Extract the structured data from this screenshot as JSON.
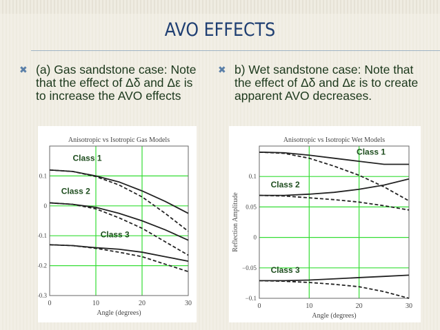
{
  "title": "AVO EFFECTS",
  "bullets": [
    {
      "icon": "x-bullet-icon",
      "mark": "✖",
      "text": "(a) Gas sandstone case: Note that the effect of Δδ and Δε is to increase the AVO effects"
    },
    {
      "icon": "x-bullet-icon",
      "mark": "✖",
      "text": "b) Wet sandstone case: Note that the effect of Δδ and Δε is to create apparent AVO decreases."
    }
  ],
  "colors": {
    "title": "#1f3f72",
    "text": "#1c381c",
    "grid": "#33dd33",
    "class_label": "#1e4d1e"
  },
  "chart_data": [
    {
      "type": "line",
      "title": "Anisotropic vs Isotropic Gas Models",
      "xlabel": "Angle (degrees)",
      "ylabel": "",
      "xlim": [
        0,
        30
      ],
      "ylim": [
        -0.3,
        0.2
      ],
      "xticks": [
        "0",
        "10",
        "20",
        "30"
      ],
      "yticks": [
        "0.1",
        "0",
        "-0.1",
        "-0.2",
        "-0.3"
      ],
      "ytick_values": [
        0.1,
        0,
        -0.1,
        -0.2,
        -0.3
      ],
      "grid": true,
      "x": [
        0,
        5,
        10,
        15,
        20,
        25,
        30
      ],
      "series": [
        {
          "label": "Class 1",
          "style": "solid",
          "values": [
            0.12,
            0.115,
            0.1,
            0.08,
            0.05,
            0.015,
            -0.025
          ]
        },
        {
          "label": "Class 1",
          "style": "dashed",
          "values": [
            0.12,
            0.115,
            0.098,
            0.07,
            0.03,
            -0.025,
            -0.085
          ]
        },
        {
          "label": "Class 2",
          "style": "solid",
          "values": [
            0.01,
            0.005,
            -0.005,
            -0.025,
            -0.05,
            -0.08,
            -0.115
          ]
        },
        {
          "label": "Class 2",
          "style": "dashed",
          "values": [
            0.01,
            0.005,
            -0.01,
            -0.04,
            -0.075,
            -0.12,
            -0.165
          ]
        },
        {
          "label": "Class 3",
          "style": "solid",
          "values": [
            -0.13,
            -0.133,
            -0.14,
            -0.145,
            -0.155,
            -0.17,
            -0.185
          ]
        },
        {
          "label": "Class 3",
          "style": "dashed",
          "values": [
            -0.13,
            -0.133,
            -0.142,
            -0.155,
            -0.17,
            -0.195,
            -0.22
          ]
        }
      ],
      "annotations": [
        {
          "text": "Class 1",
          "x": 5,
          "y": 0.15
        },
        {
          "text": "Class 2",
          "x": 2.5,
          "y": 0.04
        },
        {
          "text": "Class 3",
          "x": 11,
          "y": -0.105
        }
      ]
    },
    {
      "type": "line",
      "title": "Anisotropic vs Isotropic Wet Models",
      "xlabel": "Angle (degrees)",
      "ylabel": "Reflection Amplitude",
      "xlim": [
        0,
        30
      ],
      "ylim": [
        -0.1,
        0.15
      ],
      "xticks": [
        "0",
        "10",
        "20",
        "30"
      ],
      "yticks": [
        "0.1",
        "0.05",
        "0",
        "−0.05",
        "−0.1"
      ],
      "ytick_values": [
        0.1,
        0.05,
        0,
        -0.05,
        -0.1
      ],
      "grid": true,
      "x": [
        0,
        5,
        10,
        15,
        20,
        25,
        30
      ],
      "series": [
        {
          "label": "Class 1",
          "style": "solid",
          "values": [
            0.14,
            0.139,
            0.135,
            0.13,
            0.125,
            0.12,
            0.12
          ]
        },
        {
          "label": "Class 1",
          "style": "dashed",
          "values": [
            0.14,
            0.138,
            0.13,
            0.117,
            0.102,
            0.083,
            0.06
          ]
        },
        {
          "label": "Class 2",
          "style": "solid",
          "values": [
            0.069,
            0.069,
            0.071,
            0.074,
            0.079,
            0.086,
            0.096
          ]
        },
        {
          "label": "Class 2",
          "style": "dashed",
          "values": [
            0.069,
            0.068,
            0.065,
            0.062,
            0.058,
            0.052,
            0.045
          ]
        },
        {
          "label": "Class 3",
          "style": "solid",
          "values": [
            -0.071,
            -0.071,
            -0.07,
            -0.068,
            -0.066,
            -0.064,
            -0.062
          ]
        },
        {
          "label": "Class 3",
          "style": "dashed",
          "values": [
            -0.071,
            -0.072,
            -0.074,
            -0.077,
            -0.081,
            -0.089,
            -0.1
          ]
        }
      ],
      "annotations": [
        {
          "text": "Class 1",
          "x": 19.5,
          "y": 0.136
        },
        {
          "text": "Class 2",
          "x": 2.3,
          "y": 0.082
        },
        {
          "text": "Class 3",
          "x": 2.3,
          "y": -0.058
        }
      ]
    }
  ]
}
